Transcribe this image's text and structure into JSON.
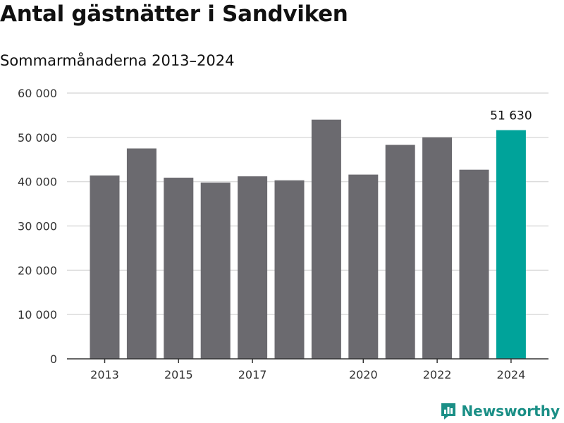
{
  "title": "Antal gästnätter i Sandviken",
  "subtitle": "Sommarmånaderna 2013–2024",
  "brand": {
    "name": "Newsworthy",
    "icon": "newsworthy-logo-icon"
  },
  "colors": {
    "bar": "#6b6a6f",
    "highlight": "#00a39a",
    "grid": "#dcdcdc",
    "axis": "#333333",
    "brand": "#1a8f86"
  },
  "chart_data": {
    "type": "bar",
    "categories": [
      "2013",
      "2014",
      "2015",
      "2016",
      "2017",
      "2018",
      "2019",
      "2020",
      "2021",
      "2022",
      "2023",
      "2024"
    ],
    "values": [
      41400,
      47500,
      40900,
      39800,
      41200,
      40300,
      54000,
      41600,
      48300,
      50000,
      42700,
      51630
    ],
    "highlight_index": 11,
    "data_labels": [
      {
        "index": 11,
        "text": "51 630"
      }
    ],
    "x_tick_labels": [
      "2013",
      "2015",
      "2017",
      "2020",
      "2022",
      "2024"
    ],
    "y_ticks": [
      0,
      10000,
      20000,
      30000,
      40000,
      50000,
      60000
    ],
    "y_tick_labels": [
      "0",
      "10 000",
      "20 000",
      "30 000",
      "40 000",
      "50 000",
      "60 000"
    ],
    "ylim": [
      0,
      60000
    ],
    "grid": true,
    "xlabel": "",
    "ylabel": ""
  }
}
